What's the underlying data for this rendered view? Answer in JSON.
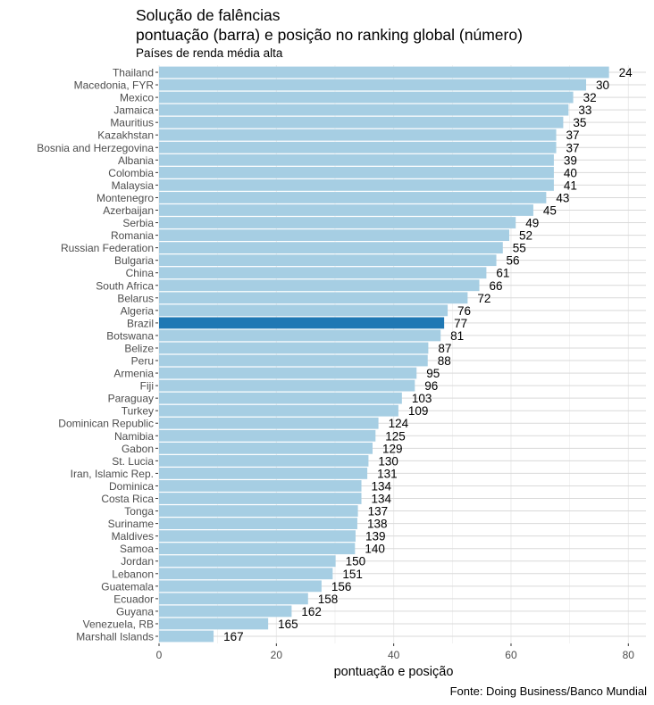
{
  "chart_data": {
    "type": "bar",
    "orientation": "horizontal",
    "title_line1": "Solução de falências",
    "title_line2": "pontuação (barra) e posição no ranking global (número)",
    "subtitle": "Países de renda média alta",
    "xlabel": "pontuação e posição",
    "caption": "Fonte: Doing Business/Banco Mundial",
    "xlim": [
      0,
      83
    ],
    "xticks": [
      0,
      20,
      40,
      60,
      80
    ],
    "grid": true,
    "legend": "none",
    "bar_color": "#a6cee3",
    "highlight_color": "#1f78b4",
    "highlight_category": "Brazil",
    "categories": [
      "Thailand",
      "Macedonia, FYR",
      "Mexico",
      "Jamaica",
      "Mauritius",
      "Kazakhstan",
      "Bosnia and Herzegovina",
      "Albania",
      "Colombia",
      "Malaysia",
      "Montenegro",
      "Azerbaijan",
      "Serbia",
      "Romania",
      "Russian Federation",
      "Bulgaria",
      "China",
      "South Africa",
      "Belarus",
      "Algeria",
      "Brazil",
      "Botswana",
      "Belize",
      "Peru",
      "Armenia",
      "Fiji",
      "Paraguay",
      "Turkey",
      "Dominican Republic",
      "Namibia",
      "Gabon",
      "St. Lucia",
      "Iran, Islamic Rep.",
      "Dominica",
      "Costa Rica",
      "Tonga",
      "Suriname",
      "Maldives",
      "Samoa",
      "Jordan",
      "Lebanon",
      "Guatemala",
      "Ecuador",
      "Guyana",
      "Venezuela, RB",
      "Marshall Islands"
    ],
    "values": [
      76.7,
      72.8,
      70.6,
      69.8,
      68.9,
      67.7,
      67.7,
      67.3,
      67.3,
      67.3,
      66.0,
      63.8,
      60.8,
      59.7,
      58.6,
      57.5,
      55.8,
      54.6,
      52.6,
      49.2,
      48.6,
      48.0,
      45.9,
      45.8,
      43.9,
      43.6,
      41.4,
      40.8,
      37.4,
      36.9,
      36.4,
      35.7,
      35.5,
      34.5,
      34.5,
      33.9,
      33.8,
      33.5,
      33.4,
      30.1,
      29.6,
      27.7,
      25.4,
      22.6,
      18.6,
      9.3
    ],
    "rank_labels": [
      "24",
      "30",
      "32",
      "33",
      "35",
      "37",
      "37",
      "39",
      "40",
      "41",
      "43",
      "45",
      "49",
      "52",
      "55",
      "56",
      "61",
      "66",
      "72",
      "76",
      "77",
      "81",
      "87",
      "88",
      "95",
      "96",
      "103",
      "109",
      "124",
      "125",
      "129",
      "130",
      "131",
      "134",
      "134",
      "137",
      "138",
      "139",
      "140",
      "150",
      "151",
      "156",
      "158",
      "162",
      "165",
      "167"
    ]
  }
}
